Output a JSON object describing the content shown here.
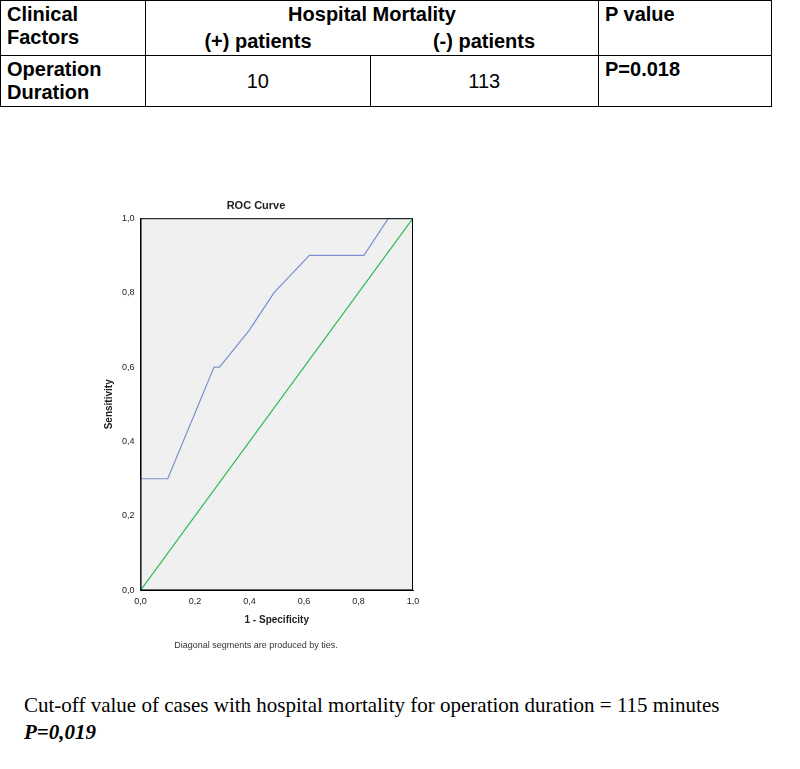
{
  "table": {
    "header": {
      "factor": "Clinical Factors",
      "group": "Hospital Mortality",
      "positive": "(+) patients",
      "negative": "(-) patients",
      "p": "P value"
    },
    "rows": [
      {
        "factor": "Operation Duration",
        "positive": 10,
        "negative": 113,
        "p": "P=0.018"
      }
    ]
  },
  "chart_data": {
    "type": "line",
    "title": "ROC Curve",
    "subtitle": "Diagonal segments are produced by ties.",
    "x_label": "1 - Specificity",
    "y_label": "Sensitivity",
    "series": [
      {
        "color": "#7b8fcf",
        "x": [
          0,
          0,
          0.1,
          0.27,
          0.29,
          0.4,
          0.49,
          0.62,
          0.82,
          0.91,
          1.0
        ],
        "values": [
          0,
          0.3,
          0.3,
          0.6,
          0.6,
          0.7,
          0.8,
          0.9,
          0.9,
          1.0,
          1.0
        ]
      },
      {
        "color": "#33bb55",
        "x": [
          0,
          1
        ],
        "values": [
          0,
          1
        ]
      }
    ],
    "xlim": [
      0,
      1
    ],
    "ylim": [
      0,
      1
    ],
    "xticks": [
      {
        "value": 0,
        "label": "0,0"
      },
      {
        "value": 0.2,
        "label": "0,2"
      },
      {
        "value": 0.4,
        "label": "0,4"
      },
      {
        "value": 0.6,
        "label": "0,6"
      },
      {
        "value": 0.8,
        "label": "0,8"
      },
      {
        "value": 1,
        "label": "1,0"
      }
    ],
    "yticks": [
      {
        "value": 0,
        "label": "0,0"
      },
      {
        "value": 0.2,
        "label": "0,2"
      },
      {
        "value": 0.4,
        "label": "0,4"
      },
      {
        "value": 0.6,
        "label": "0,6"
      },
      {
        "value": 0.8,
        "label": "0,8"
      },
      {
        "value": 1,
        "label": "1,0"
      }
    ],
    "grid": false
  },
  "caption": {
    "text": "Cut-off value of cases with hospital mortality for operation duration = 115 minutes",
    "p_value": "P=0,019"
  }
}
